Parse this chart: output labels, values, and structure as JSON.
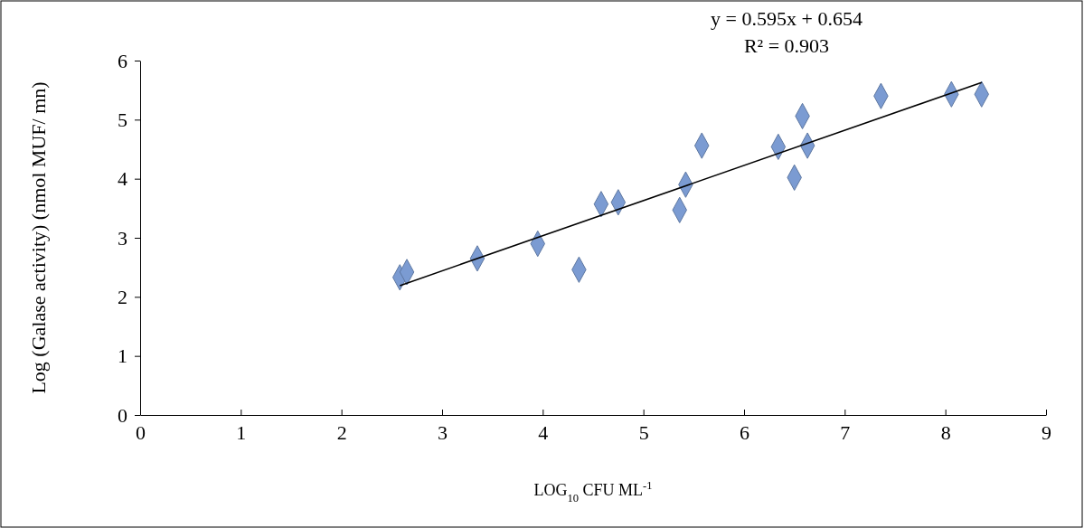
{
  "chart_data": {
    "type": "scatter",
    "xlabel": "LOG$_{10}$ CFU ML$^{-1}$",
    "ylabel": "Log (Galase activity) (nmol MUF/ mn)",
    "xlim": [
      0,
      9
    ],
    "xticks": [
      0,
      1,
      2,
      3,
      4,
      5,
      6,
      7,
      8,
      9
    ],
    "ylim": [
      0,
      6
    ],
    "yticks": [
      0,
      1,
      2,
      3,
      4,
      5,
      6
    ],
    "grid": false,
    "marker": "diamond",
    "series": [
      {
        "color": "#7b9bd2",
        "x": [
          2.58,
          2.65,
          3.35,
          3.95,
          4.36,
          4.58,
          4.75,
          5.36,
          5.42,
          5.58,
          6.34,
          6.5,
          6.58,
          6.63,
          7.36,
          8.06,
          8.36
        ],
        "values": [
          2.33,
          2.42,
          2.65,
          2.9,
          2.46,
          3.57,
          3.6,
          3.47,
          3.9,
          4.56,
          4.54,
          4.02,
          5.06,
          4.56,
          5.4,
          5.43,
          5.43
        ]
      },
      {
        "type": "line",
        "color": "#000000",
        "marker": "none",
        "x": [
          2.58,
          8.36
        ],
        "values": [
          2.19,
          5.63
        ]
      }
    ],
    "annotations": [
      "y = 0.595x + 0.654",
      "R² = 0.903"
    ]
  }
}
